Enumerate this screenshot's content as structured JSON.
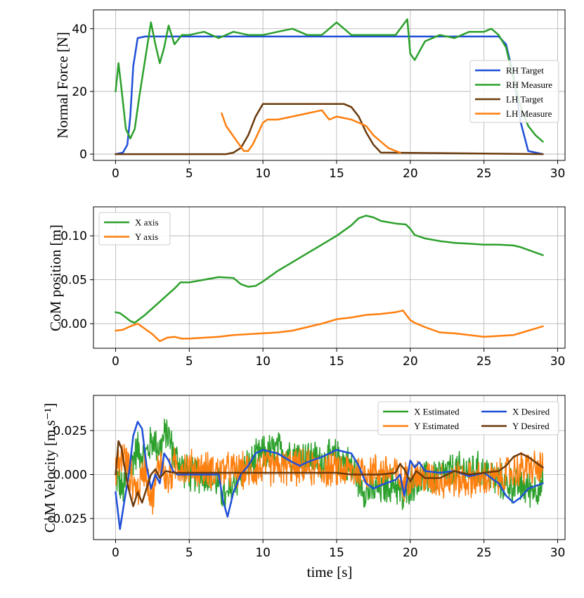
{
  "chart_data": [
    {
      "type": "line",
      "ylabel": "Normal Force [N]",
      "xlim": [
        -1.5,
        30.5
      ],
      "ylim": [
        -2,
        46
      ],
      "xticks": [
        0,
        5,
        10,
        15,
        20,
        25,
        30
      ],
      "yticks": [
        0,
        20,
        40
      ],
      "legend_position": "center-right",
      "series": [
        {
          "name": "RH Target",
          "color": "#1f4fd8",
          "x": [
            0,
            0.5,
            0.8,
            1.0,
            1.2,
            1.5,
            2,
            10,
            20,
            26,
            26.5,
            27,
            27.5,
            28,
            29
          ],
          "y": [
            0,
            0.5,
            3,
            12,
            28,
            37,
            37.5,
            37.5,
            37.5,
            37.5,
            35,
            25,
            10,
            1,
            0
          ]
        },
        {
          "name": "RH Measure",
          "color": "#2ca02c",
          "x": [
            0,
            0.2,
            0.4,
            0.7,
            1.0,
            1.3,
            1.6,
            2.0,
            2.4,
            2.7,
            3.0,
            3.3,
            3.6,
            4.0,
            4.5,
            5,
            6,
            7,
            8,
            9,
            10,
            11,
            12,
            13,
            14,
            15,
            16,
            17,
            18,
            19,
            19.8,
            20.0,
            20.3,
            21,
            22,
            23,
            24,
            25,
            25.5,
            26,
            26.5,
            27,
            27.5,
            28,
            28.5,
            29
          ],
          "y": [
            20,
            29,
            21,
            8,
            5,
            8,
            18,
            30,
            42,
            35,
            29,
            34,
            41,
            35,
            38,
            38,
            39,
            37,
            39,
            38,
            38,
            39,
            40,
            38,
            38,
            42,
            38,
            38,
            38,
            38,
            43,
            32,
            30,
            36,
            38,
            37,
            39,
            39,
            40,
            38,
            34,
            24,
            15,
            9,
            6,
            4
          ]
        },
        {
          "name": "LH Target",
          "color": "#6b3a0c",
          "x": [
            0,
            7.5,
            8,
            8.5,
            9,
            9.5,
            10,
            15,
            15.5,
            16,
            16.5,
            17,
            17.5,
            18,
            29
          ],
          "y": [
            0,
            0,
            0.5,
            2,
            6,
            12,
            16,
            16,
            16,
            15,
            12,
            7,
            3,
            0.5,
            0
          ]
        },
        {
          "name": "LH Measure",
          "color": "#ff7f0e",
          "x": [
            7.2,
            7.5,
            7.8,
            8.1,
            8.4,
            8.7,
            9.0,
            9.3,
            9.6,
            10.0,
            10.3,
            11,
            12,
            13,
            14,
            14.5,
            15,
            16,
            17,
            17.5,
            18,
            18.5,
            19,
            19.3
          ],
          "y": [
            13,
            9,
            7,
            5,
            3,
            1,
            1,
            3,
            6,
            10,
            11,
            11,
            12,
            13,
            14,
            11,
            12,
            11,
            9,
            6,
            4,
            2,
            1,
            0.5
          ]
        }
      ]
    },
    {
      "type": "line",
      "ylabel": "CoM position [m]",
      "xlim": [
        -1.5,
        30.5
      ],
      "ylim": [
        -0.028,
        0.133
      ],
      "xticks": [
        0,
        5,
        10,
        15,
        20,
        25,
        30
      ],
      "yticks": [
        0.0,
        0.05,
        0.1
      ],
      "ytick_labels": [
        "0.00",
        "0.05",
        "0.10"
      ],
      "legend_position": "upper-left",
      "series": [
        {
          "name": "X axis",
          "color": "#2ca02c",
          "x": [
            0,
            0.3,
            0.7,
            1.0,
            1.3,
            2,
            3,
            4,
            4.4,
            5,
            6,
            7,
            8,
            8.5,
            9,
            9.5,
            10,
            11,
            12,
            13,
            14,
            15,
            16,
            16.5,
            17,
            17.5,
            18,
            19,
            19.7,
            20,
            20.3,
            21,
            22,
            23,
            24,
            25,
            26,
            27,
            27.5,
            28,
            29
          ],
          "y": [
            0.013,
            0.012,
            0.007,
            0.003,
            0.001,
            0.01,
            0.025,
            0.04,
            0.047,
            0.047,
            0.05,
            0.053,
            0.052,
            0.045,
            0.042,
            0.043,
            0.048,
            0.06,
            0.07,
            0.08,
            0.09,
            0.1,
            0.112,
            0.12,
            0.123,
            0.121,
            0.117,
            0.114,
            0.113,
            0.108,
            0.101,
            0.097,
            0.094,
            0.092,
            0.091,
            0.09,
            0.09,
            0.089,
            0.087,
            0.084,
            0.078
          ]
        },
        {
          "name": "Y axis",
          "color": "#ff7f0e",
          "x": [
            0,
            0.5,
            1.0,
            1.5,
            2,
            2.5,
            3.0,
            3.5,
            4,
            4.5,
            5,
            6,
            7,
            8,
            9,
            10,
            11,
            12,
            13,
            14,
            15,
            16,
            17,
            18,
            19,
            19.5,
            20,
            20.3,
            21,
            22,
            23,
            24,
            25,
            26,
            27,
            28,
            29
          ],
          "y": [
            -0.008,
            -0.007,
            -0.003,
            0.0,
            -0.006,
            -0.012,
            -0.02,
            -0.016,
            -0.015,
            -0.017,
            -0.017,
            -0.016,
            -0.015,
            -0.013,
            -0.012,
            -0.011,
            -0.01,
            -0.008,
            -0.004,
            0.0,
            0.005,
            0.007,
            0.01,
            0.011,
            0.013,
            0.015,
            0.004,
            0.001,
            -0.004,
            -0.01,
            -0.011,
            -0.013,
            -0.015,
            -0.014,
            -0.013,
            -0.008,
            -0.003
          ]
        }
      ]
    },
    {
      "type": "line",
      "ylabel": "CoM Velocity [m.s⁻¹]",
      "xlabel": "time [s]",
      "xlim": [
        -1.5,
        30.5
      ],
      "ylim": [
        -0.037,
        0.045
      ],
      "xticks": [
        0,
        5,
        10,
        15,
        20,
        25,
        30
      ],
      "yticks": [
        -0.025,
        0.0,
        0.025
      ],
      "ytick_labels": [
        "−0.025",
        "0.000",
        "0.025"
      ],
      "legend_position": "top-right",
      "series": [
        {
          "name": "X Estimated",
          "color": "#2ca02c",
          "noise": 0.012,
          "x": [
            0,
            0.5,
            1.0,
            1.5,
            2,
            2.5,
            3,
            3.5,
            4,
            5,
            6,
            7,
            7.5,
            8,
            9,
            10,
            11,
            12,
            13,
            14,
            15,
            16,
            17,
            18,
            19,
            19.5,
            20,
            21,
            22,
            23,
            24,
            25,
            26,
            27,
            28,
            29
          ],
          "y": [
            0.0,
            -0.01,
            0.005,
            0.015,
            0.01,
            0.02,
            0.015,
            0.025,
            0.01,
            0.0,
            0.0,
            -0.005,
            -0.015,
            -0.005,
            0.005,
            0.012,
            0.014,
            0.012,
            0.01,
            0.008,
            0.01,
            0.005,
            -0.01,
            -0.008,
            -0.005,
            -0.015,
            -0.005,
            -0.003,
            0.0,
            0.002,
            0.003,
            0.002,
            -0.004,
            -0.006,
            -0.008,
            -0.007
          ]
        },
        {
          "name": "Y Estimated",
          "color": "#ff7f0e",
          "noise": 0.012,
          "x": [
            0,
            0.5,
            1,
            1.5,
            2,
            2.5,
            3,
            3.5,
            4,
            5,
            6,
            7,
            8,
            9,
            10,
            11,
            12,
            13,
            14,
            15,
            16,
            17,
            18,
            19,
            19.5,
            20,
            21,
            22,
            23,
            24,
            25,
            26,
            27,
            28,
            29
          ],
          "y": [
            0.0,
            0.012,
            0.0,
            -0.01,
            0.005,
            -0.015,
            0.01,
            -0.005,
            0.005,
            0.004,
            0.003,
            0.002,
            0.002,
            0.002,
            0.004,
            0.004,
            0.004,
            0.004,
            0.003,
            0.003,
            0.002,
            0.002,
            0.002,
            0.001,
            -0.005,
            0.0,
            -0.002,
            -0.003,
            -0.003,
            -0.003,
            -0.003,
            -0.002,
            0.002,
            0.004,
            0.003
          ]
        },
        {
          "name": "X Desired",
          "color": "#1f4fd8",
          "x": [
            0,
            0.3,
            0.6,
            0.9,
            1.2,
            1.5,
            1.8,
            2.1,
            2.4,
            2.7,
            3.0,
            3.3,
            3.6,
            3.9,
            4.2,
            5,
            6,
            7,
            7.3,
            7.6,
            8,
            8.5,
            9,
            9.5,
            10,
            11,
            12,
            12.5,
            13,
            14,
            15,
            16,
            16.5,
            17,
            17.5,
            18,
            19,
            19.3,
            19.6,
            20,
            20.3,
            20.6,
            21,
            22,
            23,
            24,
            25,
            26,
            26.5,
            27,
            27.5,
            28,
            29
          ],
          "y": [
            -0.01,
            -0.031,
            -0.015,
            0.0,
            0.022,
            0.03,
            0.026,
            0.005,
            -0.008,
            0.0,
            -0.005,
            0.012,
            0.008,
            0.002,
            0.0,
            0.0,
            0.0,
            0.0,
            -0.015,
            -0.024,
            -0.01,
            0.0,
            0.005,
            0.012,
            0.014,
            0.012,
            0.007,
            0.005,
            0.007,
            0.01,
            0.014,
            0.012,
            0.005,
            -0.005,
            -0.008,
            -0.006,
            -0.003,
            0.0,
            -0.012,
            0.008,
            0.004,
            0.007,
            0.002,
            0.001,
            0.002,
            -0.001,
            0.001,
            -0.005,
            -0.012,
            -0.016,
            -0.013,
            -0.008,
            -0.005
          ]
        },
        {
          "name": "Y Desired",
          "color": "#6b3a0c",
          "x": [
            0,
            0.2,
            0.4,
            0.6,
            0.8,
            1.0,
            1.2,
            1.5,
            1.8,
            2.1,
            2.4,
            2.7,
            3.0,
            3.4,
            4,
            5,
            6,
            7,
            8,
            9,
            10,
            11,
            12,
            13,
            14,
            15,
            16,
            17,
            18,
            19,
            19.3,
            19.6,
            20,
            20.4,
            21,
            22,
            23,
            24,
            25,
            26,
            26.5,
            27,
            27.5,
            28,
            29
          ],
          "y": [
            0.0,
            0.019,
            0.015,
            0.005,
            -0.005,
            -0.012,
            -0.018,
            -0.01,
            -0.016,
            -0.008,
            0.0,
            0.003,
            -0.002,
            0.002,
            0.001,
            0.001,
            0.001,
            0.001,
            0.001,
            0.001,
            0.001,
            0.001,
            0.001,
            0.001,
            0.001,
            0.001,
            0.0,
            0.0,
            0.0,
            0.001,
            0.006,
            0.003,
            -0.004,
            0.002,
            -0.002,
            -0.002,
            0.002,
            0.0,
            0.001,
            0.002,
            0.005,
            0.01,
            0.012,
            0.01,
            0.004
          ]
        }
      ]
    }
  ]
}
